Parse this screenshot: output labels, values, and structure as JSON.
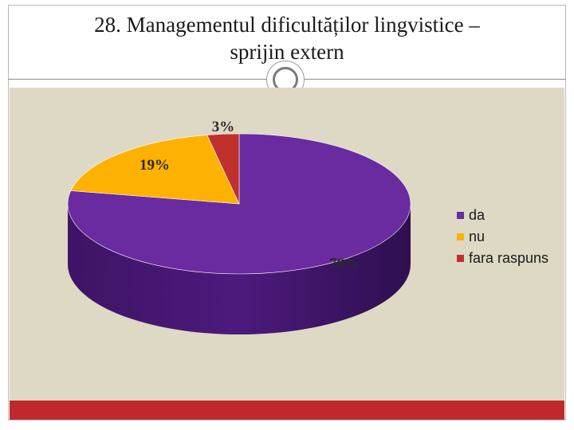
{
  "slide": {
    "title_line1": "28. Managementul dificultăților lingvistice –",
    "title_line2": "sprijin  extern"
  },
  "chart_data": {
    "type": "pie",
    "style": "3d",
    "categories": [
      "da",
      "nu",
      "fara raspuns"
    ],
    "values": [
      78,
      19,
      3
    ],
    "data_labels": [
      "78%",
      "19%",
      "3%"
    ],
    "colors": [
      "#6a2aa0",
      "#fdb202",
      "#c0302c"
    ],
    "legend": {
      "position": "right",
      "entries": [
        "da",
        "nu",
        "fara raspuns"
      ]
    },
    "title": "",
    "start_angle_deg": -90
  }
}
